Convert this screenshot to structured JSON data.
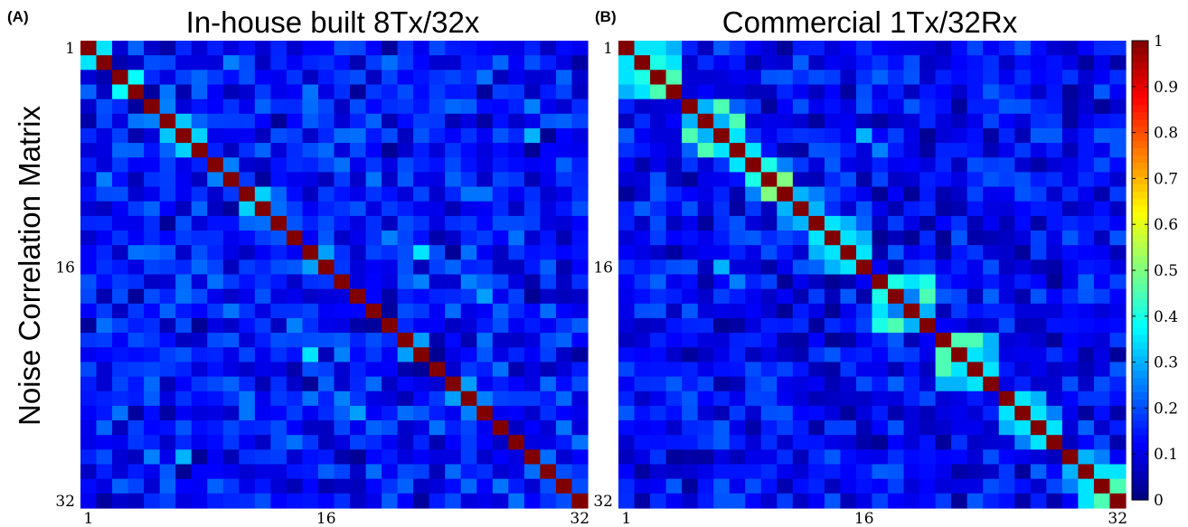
{
  "labels": {
    "panel_a": "(A)",
    "panel_b": "(B)",
    "shared_ylabel": "Noise Correlation Matrix"
  },
  "chart_data": [
    {
      "type": "heatmap",
      "panel": "(A)",
      "title": "In-house built 8Tx/32x",
      "ylabel": "Noise Correlation Matrix",
      "size": 32,
      "tick_labels": [
        "1",
        "16",
        "32"
      ],
      "tick_values": [
        1,
        16,
        32
      ],
      "clim": [
        0,
        1
      ],
      "colormap": "jet",
      "diagonal": 1.0,
      "background": 0.12,
      "offdiag": [
        [
          1,
          2,
          0.35
        ],
        [
          3,
          4,
          0.38
        ],
        [
          5,
          6,
          0.25
        ],
        [
          6,
          7,
          0.32
        ],
        [
          7,
          8,
          0.33
        ],
        [
          9,
          10,
          0.25
        ],
        [
          11,
          12,
          0.33
        ],
        [
          15,
          16,
          0.28
        ],
        [
          21,
          22,
          0.28
        ],
        [
          24,
          25,
          0.28
        ],
        [
          25,
          26,
          0.25
        ],
        [
          30,
          31,
          0.2
        ],
        [
          1,
          4,
          0.22
        ],
        [
          2,
          5,
          0.2
        ],
        [
          4,
          8,
          0.22
        ],
        [
          3,
          9,
          0.18
        ],
        [
          2,
          10,
          0.25
        ],
        [
          3,
          11,
          0.2
        ],
        [
          5,
          12,
          0.22
        ],
        [
          7,
          13,
          0.2
        ],
        [
          14,
          20,
          0.25
        ],
        [
          17,
          22,
          0.25
        ],
        [
          19,
          27,
          0.22
        ],
        [
          18,
          26,
          0.28
        ],
        [
          20,
          27,
          0.2
        ],
        [
          5,
          29,
          0.25
        ],
        [
          7,
          29,
          0.3
        ],
        [
          6,
          31,
          0.22
        ],
        [
          4,
          30,
          0.15
        ],
        [
          21,
          31,
          0.22
        ],
        [
          13,
          21,
          0.2
        ],
        [
          15,
          22,
          0.35
        ],
        [
          16,
          24,
          0.22
        ],
        [
          17,
          25,
          0.25
        ],
        [
          6,
          19,
          0.22
        ],
        [
          12,
          20,
          0.18
        ],
        [
          10,
          17,
          0.18
        ],
        [
          8,
          15,
          0.2
        ]
      ],
      "noise": [
        0.0,
        0.18
      ]
    },
    {
      "type": "heatmap",
      "panel": "(B)",
      "title": "Commercial 1Tx/32Rx",
      "size": 32,
      "tick_labels": [
        "1",
        "16",
        "32"
      ],
      "tick_values": [
        1,
        16,
        32
      ],
      "clim": [
        0,
        1
      ],
      "colormap": "jet",
      "colorbar_ticks": [
        0,
        0.1,
        0.2,
        0.3,
        0.4,
        0.5,
        0.6,
        0.7,
        0.8,
        0.9,
        1
      ],
      "colorbar_tick_labels": [
        "0",
        "0.1",
        "0.2",
        "0.3",
        "0.4",
        "0.5",
        "0.6",
        "0.7",
        "0.8",
        "0.9",
        "1"
      ],
      "diagonal": 1.0,
      "background": 0.12,
      "offdiag": [
        [
          1,
          2,
          0.35
        ],
        [
          2,
          3,
          0.4
        ],
        [
          3,
          4,
          0.45
        ],
        [
          1,
          3,
          0.35
        ],
        [
          1,
          4,
          0.3
        ],
        [
          2,
          4,
          0.35
        ],
        [
          5,
          6,
          0.3
        ],
        [
          6,
          7,
          0.3
        ],
        [
          5,
          7,
          0.45
        ],
        [
          7,
          8,
          0.35
        ],
        [
          5,
          8,
          0.22
        ],
        [
          6,
          8,
          0.45
        ],
        [
          8,
          9,
          0.35
        ],
        [
          9,
          10,
          0.4
        ],
        [
          10,
          11,
          0.5
        ],
        [
          9,
          11,
          0.25
        ],
        [
          11,
          12,
          0.3
        ],
        [
          12,
          13,
          0.3
        ],
        [
          11,
          13,
          0.25
        ],
        [
          13,
          14,
          0.35
        ],
        [
          14,
          15,
          0.35
        ],
        [
          15,
          16,
          0.35
        ],
        [
          13,
          15,
          0.3
        ],
        [
          14,
          16,
          0.3
        ],
        [
          13,
          16,
          0.22
        ],
        [
          17,
          18,
          0.4
        ],
        [
          18,
          19,
          0.25
        ],
        [
          19,
          20,
          0.3
        ],
        [
          17,
          19,
          0.35
        ],
        [
          17,
          20,
          0.4
        ],
        [
          18,
          20,
          0.45
        ],
        [
          21,
          22,
          0.45
        ],
        [
          22,
          23,
          0.35
        ],
        [
          23,
          24,
          0.35
        ],
        [
          21,
          23,
          0.45
        ],
        [
          22,
          24,
          0.3
        ],
        [
          21,
          24,
          0.3
        ],
        [
          25,
          26,
          0.35
        ],
        [
          26,
          27,
          0.35
        ],
        [
          27,
          28,
          0.35
        ],
        [
          25,
          27,
          0.3
        ],
        [
          26,
          28,
          0.25
        ],
        [
          29,
          30,
          0.3
        ],
        [
          30,
          31,
          0.35
        ],
        [
          31,
          32,
          0.45
        ],
        [
          29,
          31,
          0.25
        ],
        [
          30,
          32,
          0.35
        ],
        [
          4,
          16,
          0.2
        ],
        [
          8,
          17,
          0.25
        ],
        [
          7,
          16,
          0.3
        ],
        [
          3,
          17,
          0.22
        ],
        [
          18,
          24,
          0.22
        ],
        [
          16,
          24,
          0.2
        ],
        [
          24,
          29,
          0.2
        ],
        [
          27,
          30,
          0.22
        ],
        [
          10,
          15,
          0.2
        ]
      ],
      "noise": [
        0.0,
        0.16
      ]
    }
  ]
}
